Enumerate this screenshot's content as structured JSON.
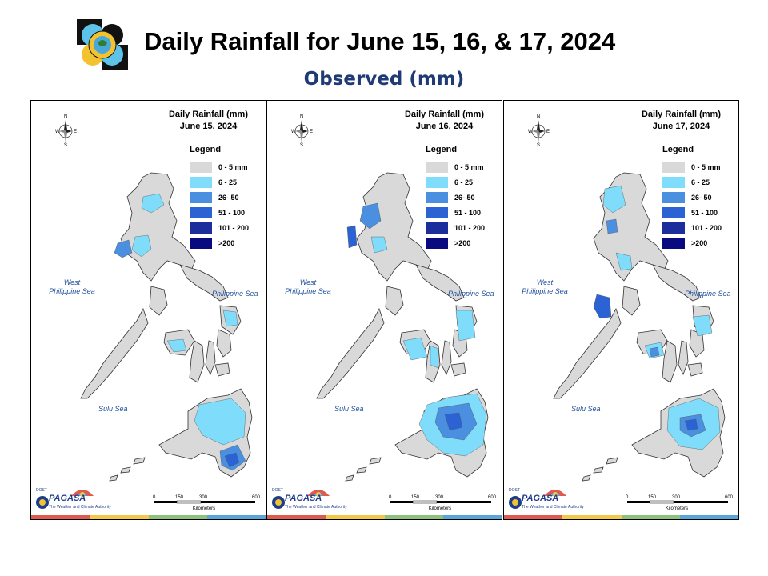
{
  "header": {
    "title": "Daily Rainfall for June 15, 16, & 17, 2024",
    "subtitle": "Observed (mm)"
  },
  "colors": {
    "background": "#ffffff",
    "subtitle": "#1f3a74",
    "land_default": "#d9d9d9",
    "sea_label": "#1f4e9a",
    "stripe": [
      "#e05a4f",
      "#f3c94b",
      "#8fc17e",
      "#5aa6d9"
    ]
  },
  "legend": {
    "title": "Legend",
    "items": [
      {
        "label": "0 - 5 mm",
        "color": "#d9d9d9"
      },
      {
        "label": "6 - 25",
        "color": "#7fdcfa"
      },
      {
        "label": "26- 50",
        "color": "#4a8fe0"
      },
      {
        "label": "51 - 100",
        "color": "#2b63d4"
      },
      {
        "label": "101 - 200",
        "color": "#1b2e9c"
      },
      {
        "label": ">200",
        "color": "#0a0a80"
      }
    ]
  },
  "labels": {
    "rainfall_heading": "Daily Rainfall (mm)",
    "sea_west_1": "West",
    "sea_west_2": "Philippine Sea",
    "sea_east": "Philippine Sea",
    "sea_sulu": "Sulu Sea",
    "compass_n": "N",
    "compass_s": "S",
    "compass_e": "E",
    "compass_w": "W",
    "scale_ticks": [
      "0",
      "150",
      "300",
      "600"
    ],
    "scale_unit": "Kilometers",
    "brand_name": "PAGASA",
    "brand_dost": "DOST",
    "brand_tagline": "The Weather and Climate Authority"
  },
  "panels": [
    {
      "date": "June 15, 2024",
      "icon": "philippines-rainfall-map"
    },
    {
      "date": "June 16, 2024",
      "icon": "philippines-rainfall-map"
    },
    {
      "date": "June 17, 2024",
      "icon": "philippines-rainfall-map"
    }
  ],
  "icons": {
    "logo": "pagasa-seal-icon",
    "compass": "north-arrow-icon",
    "brand": "pagasa-logo-icon"
  }
}
